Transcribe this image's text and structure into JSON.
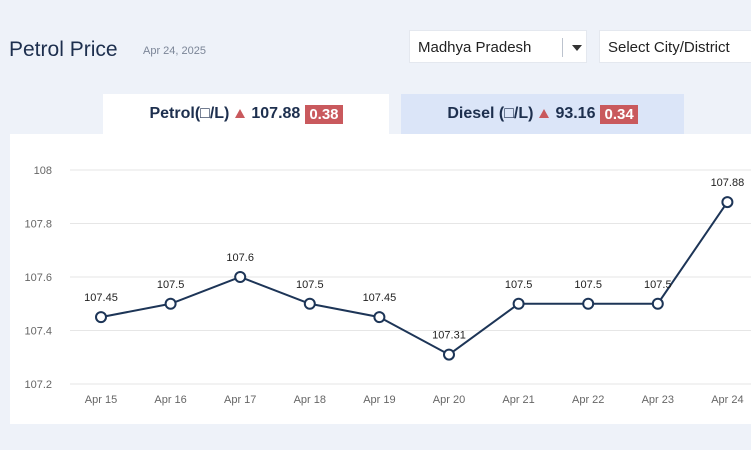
{
  "header": {
    "title": "Petrol Price",
    "date": "Apr 24, 2025",
    "state_select": {
      "value": "Madhya Pradesh"
    },
    "city_select": {
      "value": "Select City/District"
    }
  },
  "tabs": [
    {
      "label": "Petrol(□/L)",
      "price": "107.88",
      "change": "0.38",
      "active": true
    },
    {
      "label": "Diesel (□/L)",
      "price": "93.16",
      "change": "0.34",
      "active": false
    }
  ],
  "colors": {
    "line": "#1d3557",
    "grid": "#e6e6e6",
    "up_badge": "#c9595d"
  },
  "chart_data": {
    "type": "line",
    "categories": [
      "Apr 15",
      "Apr 16",
      "Apr 17",
      "Apr 18",
      "Apr 19",
      "Apr 20",
      "Apr 21",
      "Apr 22",
      "Apr 23",
      "Apr 24"
    ],
    "series": [
      {
        "values": [
          107.45,
          107.5,
          107.6,
          107.5,
          107.45,
          107.31,
          107.5,
          107.5,
          107.5,
          107.88
        ]
      }
    ],
    "data_labels": [
      "107.45",
      "107.5",
      "107.6",
      "107.5",
      "107.45",
      "107.31",
      "107.5",
      "107.5",
      "107.5",
      "107.88"
    ],
    "y_ticks": [
      107.2,
      107.4,
      107.6,
      107.8,
      108
    ],
    "y_tick_labels": [
      "107.2",
      "107.4",
      "107.6",
      "107.8",
      "108"
    ],
    "ylim": [
      107.2,
      108
    ],
    "grid": true,
    "title": "",
    "xlabel": "",
    "ylabel": ""
  }
}
